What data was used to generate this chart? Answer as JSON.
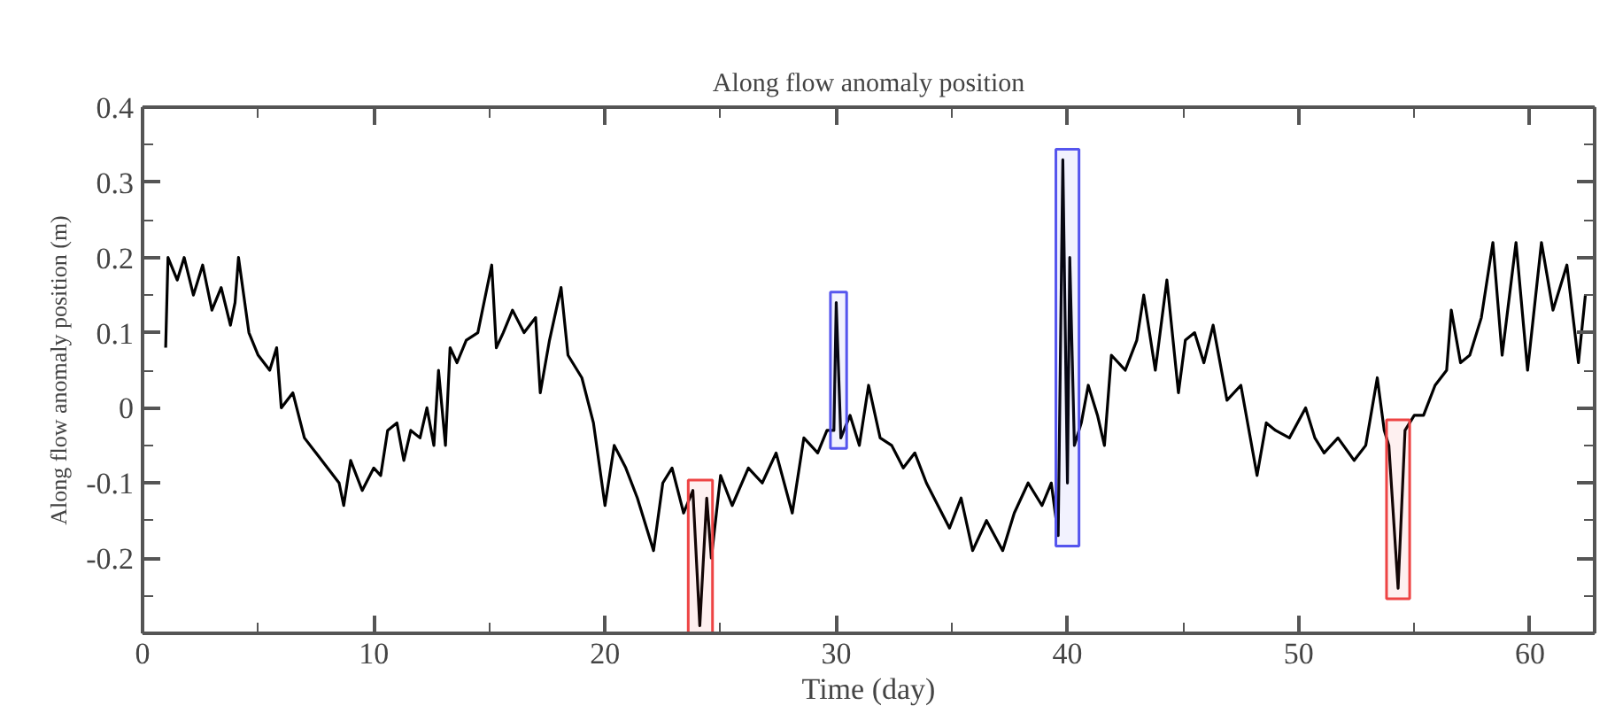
{
  "chart_data": {
    "type": "line",
    "title": "Along flow anomaly position",
    "xlabel": "Time (day)",
    "ylabel": "Along flow anomaly position (m)",
    "xlim": [
      0,
      62.8
    ],
    "ylim": [
      -0.3,
      0.4
    ],
    "xticks": [
      0,
      10,
      20,
      30,
      40,
      50,
      60
    ],
    "yticks": [
      {
        "value": -0.3,
        "label": null
      },
      -0.2,
      -0.1,
      0,
      0.1,
      0.2,
      0.3,
      0.4
    ],
    "grid": false,
    "marker": "none",
    "line_style": "solid",
    "bands": [
      {
        "axis": "x",
        "from": 23.6,
        "to": 24.65,
        "color": "#ee4444"
      },
      {
        "axis": "x",
        "from": 29.75,
        "to": 30.45,
        "color": "#5555ee"
      },
      {
        "axis": "x",
        "from": 39.5,
        "to": 40.5,
        "color": "#5555ee"
      },
      {
        "axis": "x",
        "from": 53.8,
        "to": 54.8,
        "color": "#ee4444"
      }
    ],
    "series": [
      {
        "color": "#000000",
        "x": [
          1.0,
          1.1,
          1.5,
          1.8,
          2.2,
          2.6,
          3.0,
          3.4,
          3.8,
          4.0,
          4.15,
          4.6,
          5.0,
          5.5,
          5.8,
          6.0,
          6.5,
          7.0,
          7.5,
          8.0,
          8.5,
          8.7,
          9.0,
          9.5,
          10.0,
          10.3,
          10.6,
          11.0,
          11.3,
          11.6,
          12.0,
          12.3,
          12.6,
          12.8,
          13.1,
          13.3,
          13.6,
          14.0,
          14.5,
          15.1,
          15.3,
          15.6,
          16.0,
          16.5,
          17.0,
          17.2,
          17.6,
          18.1,
          18.4,
          19.0,
          19.5,
          20.0,
          20.4,
          20.9,
          21.4,
          22.1,
          22.5,
          22.9,
          23.4,
          23.8,
          24.1,
          24.4,
          24.6,
          25.0,
          25.5,
          26.2,
          26.8,
          27.4,
          28.1,
          28.6,
          29.2,
          29.6,
          29.9,
          30.0,
          30.2,
          30.6,
          31.0,
          31.4,
          31.9,
          32.4,
          32.9,
          33.4,
          33.9,
          34.4,
          34.9,
          35.4,
          35.9,
          36.5,
          37.2,
          37.7,
          38.3,
          38.9,
          39.3,
          39.6,
          39.8,
          40.0,
          40.1,
          40.3,
          40.6,
          40.9,
          41.3,
          41.6,
          41.9,
          42.5,
          43.0,
          43.3,
          43.8,
          44.3,
          44.8,
          45.1,
          45.5,
          45.9,
          46.3,
          46.9,
          47.5,
          48.2,
          48.6,
          49.0,
          49.6,
          50.3,
          50.7,
          51.1,
          51.7,
          52.4,
          52.9,
          53.4,
          53.7,
          53.9,
          54.3,
          54.6,
          55.0,
          55.4,
          55.9,
          56.4,
          56.6,
          57.0,
          57.4,
          57.9,
          58.4,
          58.8,
          59.4,
          59.9,
          60.5,
          61.0,
          61.6,
          62.1,
          62.4
        ],
        "values": [
          0.08,
          0.2,
          0.17,
          0.2,
          0.15,
          0.19,
          0.13,
          0.16,
          0.11,
          0.14,
          0.2,
          0.1,
          0.07,
          0.05,
          0.08,
          0.0,
          0.02,
          -0.04,
          -0.06,
          -0.08,
          -0.1,
          -0.13,
          -0.07,
          -0.11,
          -0.08,
          -0.09,
          -0.03,
          -0.02,
          -0.07,
          -0.03,
          -0.04,
          0.0,
          -0.05,
          0.05,
          -0.05,
          0.08,
          0.06,
          0.09,
          0.1,
          0.19,
          0.08,
          0.1,
          0.13,
          0.1,
          0.12,
          0.02,
          0.09,
          0.16,
          0.07,
          0.04,
          -0.02,
          -0.13,
          -0.05,
          -0.08,
          -0.12,
          -0.19,
          -0.1,
          -0.08,
          -0.14,
          -0.11,
          -0.29,
          -0.12,
          -0.2,
          -0.09,
          -0.13,
          -0.08,
          -0.1,
          -0.06,
          -0.14,
          -0.04,
          -0.06,
          -0.03,
          -0.03,
          0.14,
          -0.04,
          -0.01,
          -0.05,
          0.03,
          -0.04,
          -0.05,
          -0.08,
          -0.06,
          -0.1,
          -0.13,
          -0.16,
          -0.12,
          -0.19,
          -0.15,
          -0.19,
          -0.14,
          -0.1,
          -0.13,
          -0.1,
          -0.17,
          0.33,
          -0.1,
          0.2,
          -0.05,
          -0.02,
          0.03,
          -0.01,
          -0.05,
          0.07,
          0.05,
          0.09,
          0.15,
          0.05,
          0.17,
          0.02,
          0.09,
          0.1,
          0.06,
          0.11,
          0.01,
          0.03,
          -0.09,
          -0.02,
          -0.03,
          -0.04,
          0.0,
          -0.04,
          -0.06,
          -0.04,
          -0.07,
          -0.05,
          0.04,
          -0.03,
          -0.05,
          -0.24,
          -0.03,
          -0.01,
          -0.01,
          0.03,
          0.05,
          0.13,
          0.06,
          0.07,
          0.12,
          0.22,
          0.07,
          0.22,
          0.05,
          0.22,
          0.13,
          0.19,
          0.06,
          0.15
        ]
      }
    ]
  }
}
